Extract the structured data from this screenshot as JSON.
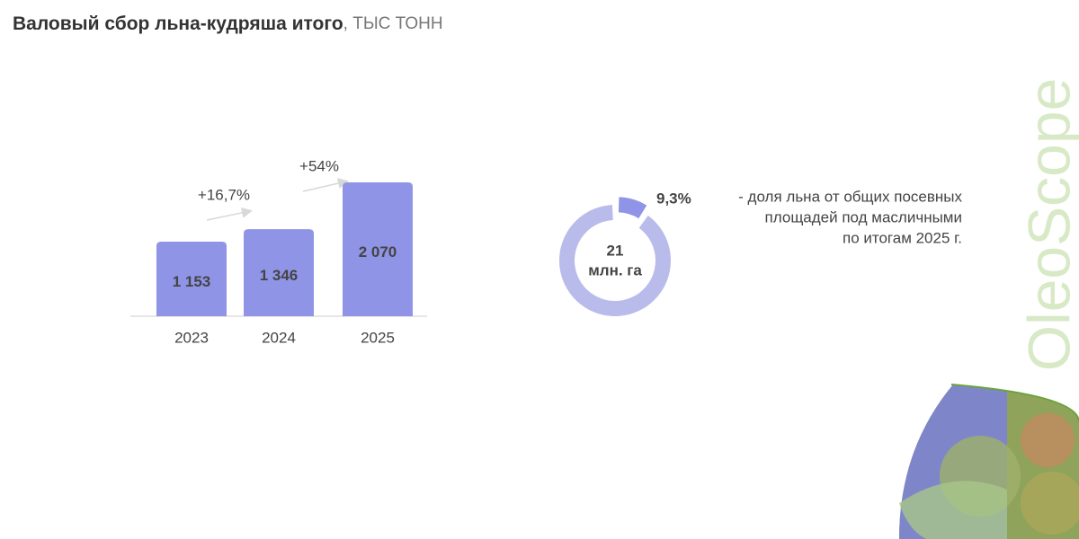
{
  "chart_data": [
    {
      "type": "bar",
      "title": "Валовый сбор льна-кудряша итого",
      "subtitle": ", ТЫС ТОНН",
      "categories": [
        "2023",
        "2024",
        "2025"
      ],
      "values": [
        1153,
        1346,
        2070
      ],
      "value_labels": [
        "1 153",
        "1 346",
        "2 070"
      ],
      "color": "#8f94e6",
      "annotations": [
        "+16,7%",
        "+54%"
      ]
    },
    {
      "type": "donut",
      "values": [
        9.3
      ],
      "value_labels": [
        "9,3%"
      ],
      "color": "#8f94e6",
      "track_color": "#b9bbeb",
      "center_labels": [
        "21",
        "млн. га"
      ],
      "note_lines": [
        "- доля льна от общих посевных",
        "площадей под масличными",
        "по итогам 2025 г."
      ]
    }
  ],
  "logo": "OleoScope"
}
